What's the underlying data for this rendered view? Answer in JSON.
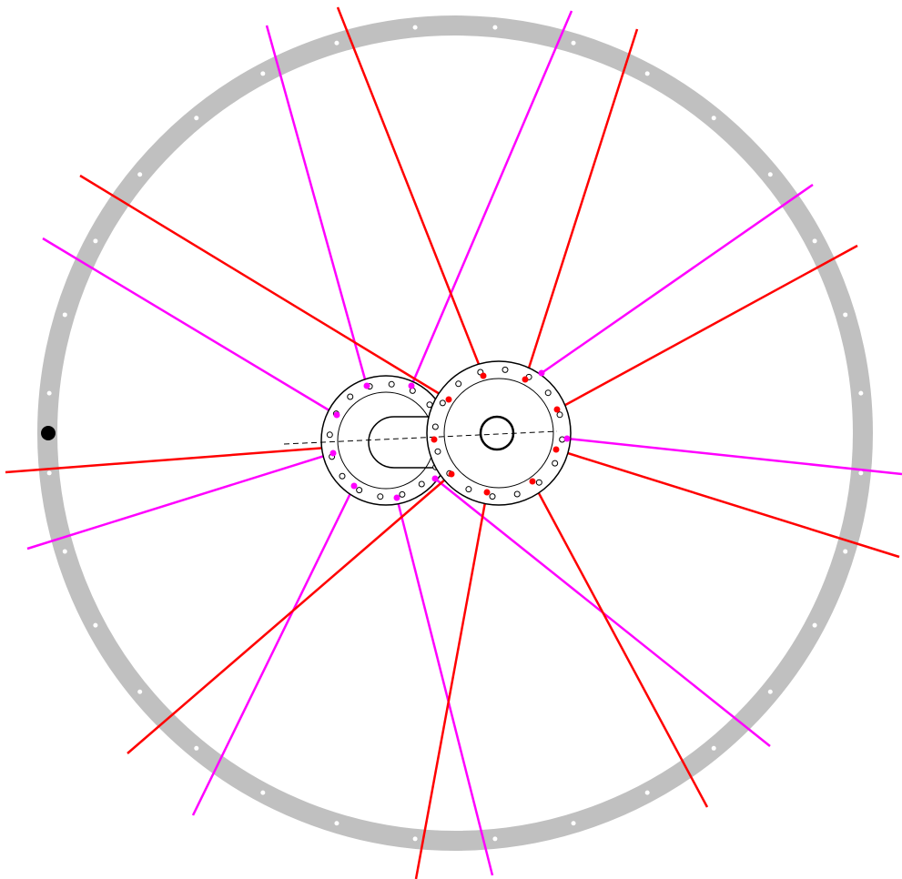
{
  "diagram": {
    "kind": "bicycle wheel spoke lacing",
    "rim": {
      "color": "#c0c0c0",
      "hole_color": "#ffffff",
      "spoke_holes": 32,
      "valve_marker_color": "#000000"
    },
    "hubs": [
      {
        "id": "left-hub-flange",
        "spoke_color": "#ff00ff",
        "flange_holes": 16,
        "outline_color": "#000000"
      },
      {
        "id": "right-hub-flange",
        "spoke_color": "#ff0000",
        "flange_holes": 16,
        "outline_color": "#000000"
      }
    ],
    "colors": {
      "background": "#ffffff",
      "left_spokes": "#ff00ff",
      "right_spokes": "#ff0000",
      "axle_line": "#000000"
    }
  }
}
